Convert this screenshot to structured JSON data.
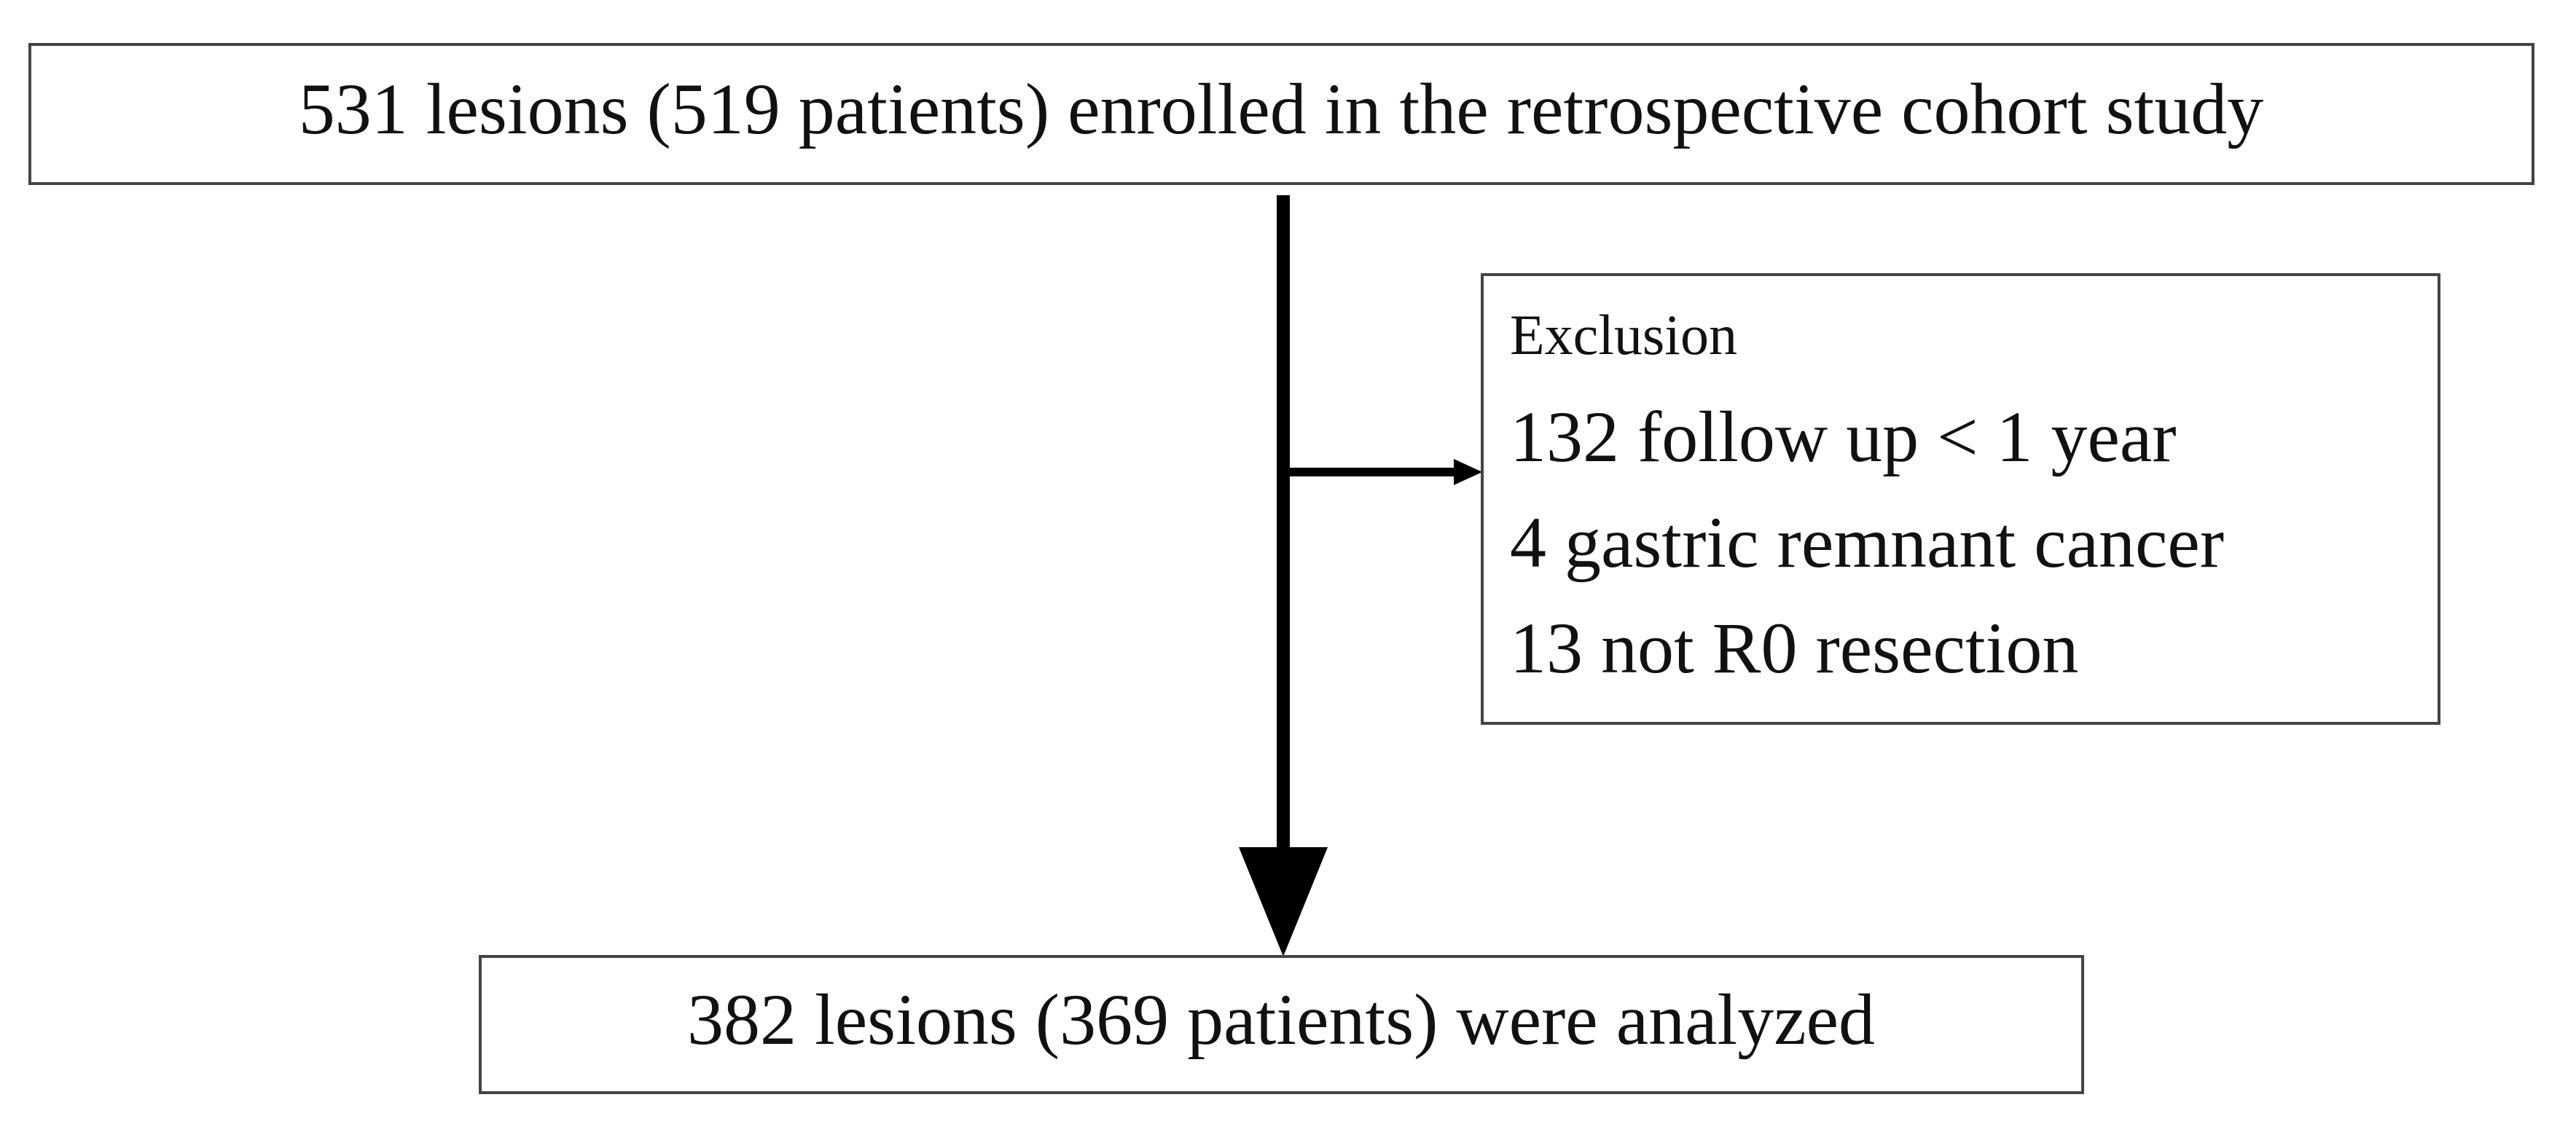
{
  "nodes": [
    {
      "label": "531 lesions (519 patients) enrolled in the retrospective cohort study"
    },
    {
      "title": "Exclusion",
      "items": [
        "132 follow up < 1 year",
        "4 gastric remnant cancer",
        "13 not R0 resection"
      ]
    },
    {
      "label": "382 lesions (369 patients) were analyzed"
    }
  ]
}
